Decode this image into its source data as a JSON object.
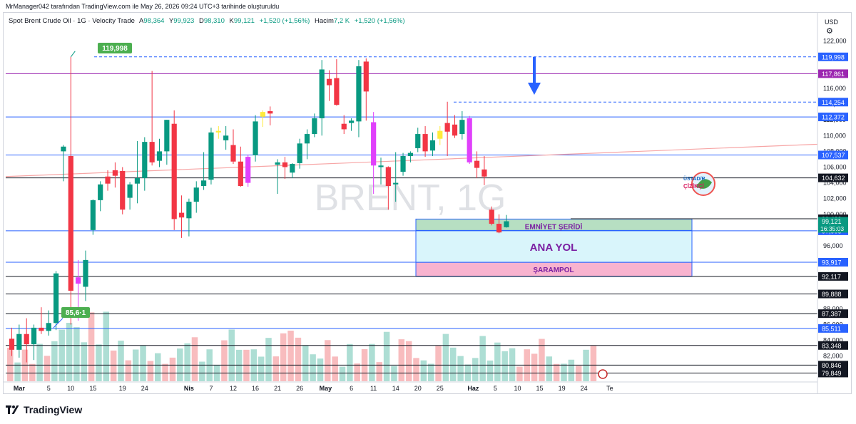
{
  "header": {
    "publisher_line": "MrManager042 tarafından TradingView.com ile May 26, 2026 09:24 UTC+3 tarihinde oluşturuldu"
  },
  "legend": {
    "symbol": "Spot Brent Crude Oil · 1G · Velocity Trade",
    "o_label": "A",
    "o_value": "98,364",
    "h_label": "Y",
    "h_value": "99,923",
    "l_label": "D",
    "l_value": "98,310",
    "c_label": "K",
    "c_value": "99,121",
    "change": "+1,520 (+1,56%)",
    "vol_label": "Hacim",
    "vol_value": "7,2 K",
    "vol_change": "+1,520 (+1,56%)"
  },
  "currency": "USD",
  "watermark": "BRENT, 1G",
  "brand": "TradingView",
  "logo_text": "ÜSTAD/R ÇİZİKÇİ",
  "colors": {
    "up": "#089981",
    "down": "#f23645",
    "magenta": "#e040fb",
    "yellow": "#ffeb3b",
    "blue_line": "#2962ff",
    "purple_line": "#9c27b0",
    "trend": "#f7a6a6",
    "zone_green": "#b7dfc2",
    "zone_cyan": "#d9f5fb",
    "zone_pink": "#f8b3cf",
    "zone_text": "#7b1fa2"
  },
  "zones": {
    "emniyet": "EMNİYET ŞERİDİ",
    "ana_yol": "ANA YOL",
    "sarampol": "ŞARAMPOL"
  },
  "annotations": {
    "high_label": "119,998",
    "low_label": "85,6·1"
  },
  "price_tags": {
    "current_price": "99,121",
    "countdown": "16:35:03"
  },
  "chart_data": {
    "type": "candlestick",
    "title": "Spot Brent Crude Oil · 1G · Velocity Trade",
    "ylim": [
      77,
      124
    ],
    "y_ticks": [
      "82,000",
      "84,000",
      "86,000",
      "88,000",
      "90,000",
      "92,000",
      "94,000",
      "96,000",
      "98,000",
      "100,000",
      "102,000",
      "104,000",
      "106,000",
      "108,000",
      "110,000",
      "112,000",
      "114,000",
      "116,000",
      "118,000",
      "120,000",
      "122,000"
    ],
    "x_ticks": [
      {
        "label": "Mar",
        "bar": 1,
        "bold": true
      },
      {
        "label": "5",
        "bar": 5
      },
      {
        "label": "10",
        "bar": 8
      },
      {
        "label": "15",
        "bar": 11
      },
      {
        "label": "19",
        "bar": 15
      },
      {
        "label": "24",
        "bar": 18
      },
      {
        "label": "Nis",
        "bar": 24,
        "bold": true
      },
      {
        "label": "7",
        "bar": 27
      },
      {
        "label": "12",
        "bar": 30
      },
      {
        "label": "16",
        "bar": 33
      },
      {
        "label": "21",
        "bar": 36
      },
      {
        "label": "26",
        "bar": 39
      },
      {
        "label": "May",
        "bar": 42.5,
        "bold": true
      },
      {
        "label": "6",
        "bar": 46
      },
      {
        "label": "11",
        "bar": 49
      },
      {
        "label": "14",
        "bar": 52
      },
      {
        "label": "20",
        "bar": 55
      },
      {
        "label": "25",
        "bar": 58
      },
      {
        "label": "Haz",
        "bar": 62.5,
        "bold": true
      },
      {
        "label": "5",
        "bar": 65.5
      },
      {
        "label": "10",
        "bar": 68.5
      },
      {
        "label": "15",
        "bar": 71.5
      },
      {
        "label": "19",
        "bar": 74.5
      },
      {
        "label": "24",
        "bar": 77.5
      },
      {
        "label": "Te",
        "bar": 81
      }
    ],
    "candles": [
      {
        "o": 84.2,
        "h": 85.6,
        "l": 82.0,
        "c": 82.8,
        "k": "d"
      },
      {
        "o": 82.8,
        "h": 86.0,
        "l": 81.8,
        "c": 84.8,
        "k": "u"
      },
      {
        "o": 84.8,
        "h": 86.8,
        "l": 81.2,
        "c": 83.5,
        "k": "d"
      },
      {
        "o": 83.5,
        "h": 86.0,
        "l": 81.5,
        "c": 85.6,
        "k": "u"
      },
      {
        "o": 85.6,
        "h": 88.2,
        "l": 84.8,
        "c": 85.2,
        "k": "d"
      },
      {
        "o": 85.2,
        "h": 87.8,
        "l": 84.6,
        "c": 86.2,
        "k": "u"
      },
      {
        "o": 86.2,
        "h": 92.8,
        "l": 85.3,
        "c": 92.5,
        "k": "u"
      },
      {
        "o": 108.0,
        "h": 108.8,
        "l": 104.2,
        "c": 108.6,
        "k": "u"
      },
      {
        "o": 107.4,
        "h": 119.998,
        "l": 86.0,
        "c": 90.3,
        "k": "d"
      },
      {
        "o": 91.2,
        "h": 94.2,
        "l": 86.5,
        "c": 92.0,
        "k": "m"
      },
      {
        "o": 90.8,
        "h": 95.4,
        "l": 89.0,
        "c": 94.2,
        "k": "u"
      },
      {
        "o": 98.0,
        "h": 101.9,
        "l": 97.4,
        "c": 101.8,
        "k": "u"
      },
      {
        "o": 101.8,
        "h": 104.2,
        "l": 100.4,
        "c": 103.8,
        "k": "u"
      },
      {
        "o": 103.9,
        "h": 105.6,
        "l": 103.0,
        "c": 104.8,
        "k": "d"
      },
      {
        "o": 104.9,
        "h": 106.6,
        "l": 103.4,
        "c": 105.6,
        "k": "d"
      },
      {
        "o": 105.5,
        "h": 106.0,
        "l": 100.0,
        "c": 100.6,
        "k": "d"
      },
      {
        "o": 102.1,
        "h": 104.1,
        "l": 100.6,
        "c": 103.8,
        "k": "u"
      },
      {
        "o": 103.9,
        "h": 109.3,
        "l": 101.4,
        "c": 104.6,
        "k": "u"
      },
      {
        "o": 104.6,
        "h": 109.8,
        "l": 103.0,
        "c": 109.2,
        "k": "u"
      },
      {
        "o": 109.2,
        "h": 118.2,
        "l": 106.2,
        "c": 106.6,
        "k": "d"
      },
      {
        "o": 106.8,
        "h": 109.6,
        "l": 106.0,
        "c": 108.0,
        "k": "u"
      },
      {
        "o": 108.0,
        "h": 112.0,
        "l": 106.3,
        "c": 112.0,
        "k": "u"
      },
      {
        "o": 111.5,
        "h": 113.2,
        "l": 98.0,
        "c": 99.4,
        "k": "d"
      },
      {
        "o": 100.2,
        "h": 102.4,
        "l": 97.0,
        "c": 99.6,
        "k": "d"
      },
      {
        "o": 99.5,
        "h": 102.0,
        "l": 97.2,
        "c": 101.6,
        "k": "u"
      },
      {
        "o": 101.6,
        "h": 104.2,
        "l": 100.2,
        "c": 103.4,
        "k": "u"
      },
      {
        "o": 103.6,
        "h": 107.9,
        "l": 103.1,
        "c": 104.3,
        "k": "u"
      },
      {
        "o": 104.4,
        "h": 111.0,
        "l": 103.8,
        "c": 110.4,
        "k": "u"
      },
      {
        "o": 110.4,
        "h": 111.2,
        "l": 109.6,
        "c": 110.6,
        "k": "y"
      },
      {
        "o": 110.0,
        "h": 111.2,
        "l": 108.2,
        "c": 109.4,
        "k": "u"
      },
      {
        "o": 108.8,
        "h": 110.8,
        "l": 106.4,
        "c": 106.7,
        "k": "d"
      },
      {
        "o": 106.7,
        "h": 108.6,
        "l": 103.5,
        "c": 103.6,
        "k": "d"
      },
      {
        "o": 104.0,
        "h": 107.6,
        "l": 103.5,
        "c": 107.3,
        "k": "m"
      },
      {
        "o": 107.5,
        "h": 112.6,
        "l": 106.7,
        "c": 111.8,
        "k": "u"
      },
      {
        "o": 112.4,
        "h": 113.2,
        "l": 111.1,
        "c": 113.0,
        "k": "y"
      },
      {
        "o": 113.1,
        "h": 113.7,
        "l": 111.3,
        "c": 112.8,
        "k": "d"
      }
    ]
  }
}
